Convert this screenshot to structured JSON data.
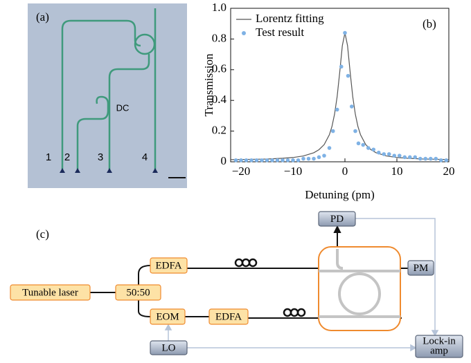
{
  "panel_a": {
    "label": "(a)",
    "port_labels": [
      "1",
      "2",
      "3",
      "4"
    ],
    "dc_label": "DC"
  },
  "chart_data": {
    "type": "line",
    "panel_label": "(b)",
    "xlabel": "Detuning (pm)",
    "ylabel": "Transmission",
    "xlim": [
      -22,
      20
    ],
    "ylim": [
      0,
      1
    ],
    "xticks": [
      {
        "value": -20,
        "label": "−20"
      },
      {
        "value": -10,
        "label": "−10"
      },
      0,
      10,
      20
    ],
    "yticks": [
      0,
      0.2,
      0.4,
      0.6,
      0.8,
      {
        "value": 1,
        "label": "1.0"
      }
    ],
    "legend": "top-left",
    "series": [
      {
        "name": "Lorentz fitting",
        "color": "#555555",
        "kind": "line",
        "x": [
          -22,
          -18,
          -15,
          -12,
          -10,
          -8,
          -6,
          -5,
          -4,
          -3,
          -2.5,
          -2,
          -1.5,
          -1,
          -0.5,
          0,
          0.5,
          1,
          1.5,
          2,
          2.5,
          3,
          4,
          5,
          6,
          8,
          10,
          12,
          15,
          18,
          20
        ],
        "values": [
          0.014,
          0.016,
          0.018,
          0.023,
          0.028,
          0.038,
          0.059,
          0.079,
          0.112,
          0.176,
          0.23,
          0.31,
          0.425,
          0.585,
          0.757,
          0.84,
          0.757,
          0.585,
          0.425,
          0.31,
          0.23,
          0.176,
          0.112,
          0.079,
          0.059,
          0.038,
          0.028,
          0.023,
          0.018,
          0.016,
          0.015
        ]
      },
      {
        "name": "Test result",
        "color": "#7fb2e5",
        "kind": "scatter",
        "x": [
          -21,
          -20,
          -19,
          -18,
          -17,
          -16,
          -15,
          -14,
          -13,
          -12,
          -11,
          -10,
          -9,
          -8,
          -7,
          -6,
          -5,
          -4,
          -3,
          -2.3,
          -1.5,
          -0.7,
          0,
          0.6,
          1.3,
          2,
          2.6,
          3.5,
          4.5,
          5.5,
          6.5,
          7.5,
          8.5,
          9.5,
          10.5,
          11.5,
          12.5,
          13.5,
          14.5,
          15.5,
          16.5,
          17.5,
          18.5,
          19.5
        ],
        "values": [
          0.01,
          0.01,
          0.01,
          0.01,
          0.01,
          0.01,
          0.01,
          0.01,
          0.01,
          0.01,
          0.01,
          0.01,
          0.01,
          0.02,
          0.02,
          0.02,
          0.03,
          0.04,
          0.09,
          0.2,
          0.34,
          0.62,
          0.84,
          0.56,
          0.36,
          0.2,
          0.12,
          0.11,
          0.09,
          0.08,
          0.06,
          0.05,
          0.05,
          0.04,
          0.04,
          0.03,
          0.03,
          0.03,
          0.02,
          0.02,
          0.02,
          0.02,
          0.01,
          0.01
        ]
      }
    ]
  },
  "panel_c": {
    "label": "(c)",
    "nodes": [
      {
        "label": "Tunable laser"
      },
      {
        "label": "50:50"
      },
      {
        "label": "EDFA"
      },
      {
        "label": "EOM"
      },
      {
        "label": "EDFA"
      },
      {
        "label": "LO"
      },
      {
        "label": "PD"
      },
      {
        "label": "PM"
      },
      {
        "lines": [
          "Lock-in",
          "amp"
        ]
      }
    ]
  }
}
